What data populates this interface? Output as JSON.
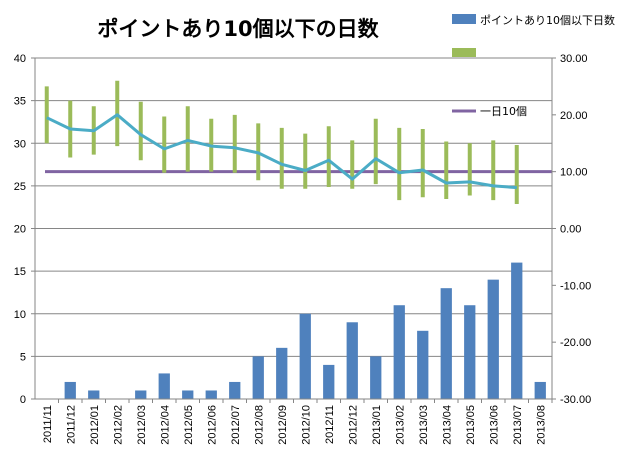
{
  "chart_data": {
    "type": "bar",
    "title": "ポイントあり10個以下の日数",
    "categories": [
      "2011/11",
      "2011/12",
      "2012/01",
      "2012/02",
      "2012/03",
      "2012/04",
      "2012/05",
      "2012/06",
      "2012/07",
      "2012/08",
      "2012/09",
      "2012/10",
      "2012/11",
      "2012/12",
      "2013/01",
      "2013/02",
      "2013/03",
      "2013/04",
      "2013/05",
      "2013/06",
      "2013/07",
      "2013/08"
    ],
    "left_axis": {
      "min": 0,
      "max": 40,
      "ticks": [
        "0",
        "5",
        "10",
        "15",
        "20",
        "25",
        "30",
        "35",
        "40"
      ]
    },
    "right_axis": {
      "min": -30,
      "max": 30,
      "ticks": [
        "-30.00",
        "-20.00",
        "-10.00",
        "0.00",
        "10.00",
        "20.00",
        "30.00"
      ]
    },
    "grid": true,
    "legend_position": "right",
    "series": [
      {
        "name": "ポイントあり10個以下日数",
        "kind": "bar",
        "axis": "left",
        "color": "#4F81BD",
        "values": [
          0,
          2,
          1,
          0,
          1,
          3,
          1,
          1,
          2,
          5,
          6,
          10,
          4,
          9,
          5,
          11,
          8,
          13,
          11,
          14,
          16,
          2
        ]
      },
      {
        "name": "",
        "kind": "line",
        "axis": "right",
        "color": "#4BACC6",
        "values": [
          19.5,
          17.5,
          17.2,
          20.0,
          16.5,
          14.0,
          15.5,
          14.5,
          14.2,
          13.3,
          11.3,
          10.2,
          12.0,
          8.7,
          12.3,
          9.8,
          10.3,
          8.0,
          8.2,
          7.5,
          7.2,
          null
        ]
      },
      {
        "name": "",
        "kind": "error-bars",
        "axis": "right",
        "color": "#9BBB59",
        "low": [
          15.0,
          12.5,
          13.0,
          14.5,
          12.0,
          9.8,
          10.0,
          10.0,
          9.8,
          8.5,
          7.0,
          7.0,
          7.3,
          7.0,
          7.8,
          5.0,
          5.5,
          5.2,
          5.8,
          5.0,
          4.3,
          null
        ],
        "high": [
          25.0,
          22.5,
          21.5,
          26.0,
          22.3,
          19.7,
          21.5,
          19.3,
          20.0,
          18.5,
          17.7,
          16.7,
          18.0,
          15.5,
          19.3,
          17.7,
          17.5,
          15.3,
          15.0,
          15.5,
          14.7,
          null
        ]
      },
      {
        "name": "一日10個",
        "kind": "reference-line",
        "axis": "right",
        "color": "#8064A2",
        "value": 10
      }
    ],
    "legend": [
      {
        "label": "ポイントあり10個以下日数",
        "symbol": "bar",
        "color": "#4F81BD"
      },
      {
        "label": "",
        "symbol": "bar",
        "color": "#9BBB59"
      },
      {
        "label": "一日10個",
        "symbol": "line",
        "color": "#8064A2"
      }
    ]
  }
}
